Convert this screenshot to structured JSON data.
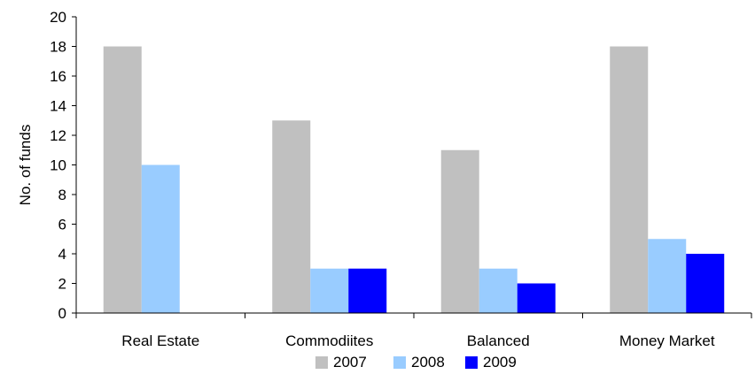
{
  "chart_data": {
    "type": "bar",
    "categories": [
      "Real Estate",
      "Commodiites",
      "Balanced",
      "Money Market"
    ],
    "series": [
      {
        "name": "2007",
        "values": [
          18,
          13,
          11,
          18
        ],
        "color": "#c0c0c0"
      },
      {
        "name": "2008",
        "values": [
          10,
          3,
          3,
          5
        ],
        "color": "#99ccff"
      },
      {
        "name": "2009",
        "values": [
          0,
          3,
          2,
          4
        ],
        "color": "#0000ff"
      }
    ],
    "xlabel": "",
    "ylabel": "No. of funds",
    "ylim": [
      0,
      20
    ],
    "yticks": [
      0,
      2,
      4,
      6,
      8,
      10,
      12,
      14,
      16,
      18,
      20
    ],
    "grid": false,
    "legend_position": "bottom"
  }
}
